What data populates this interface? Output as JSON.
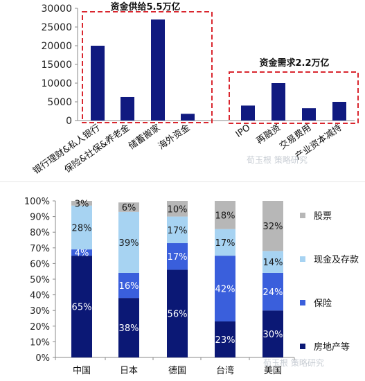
{
  "chart_data": [
    {
      "type": "bar",
      "ylim": [
        0,
        30000
      ],
      "yticks": [
        "0",
        "5000",
        "10000",
        "15000",
        "20000",
        "25000",
        "30000"
      ],
      "categories": [
        "银行理财&私人银行",
        "保险&社保&养老金",
        "储蓄搬家",
        "海外资金",
        "IPO",
        "再融资",
        "交易费用",
        "产业资本减持"
      ],
      "values": [
        20000,
        6300,
        27000,
        1800,
        4000,
        10000,
        3300,
        5000
      ],
      "annotations": [
        {
          "text": "资金供给5.5万亿",
          "covers": [
            "银行理财&私人银行",
            "保险&社保&养老金",
            "储蓄搬家",
            "海外资金"
          ]
        },
        {
          "text": "资金需求2.2万亿",
          "covers": [
            "IPO",
            "再融资",
            "交易费用",
            "产业资本减持"
          ]
        }
      ],
      "colors": {
        "bar": "#101a80",
        "box": "#d9262e"
      }
    },
    {
      "type": "bar",
      "stacked": true,
      "ylim": [
        0,
        100
      ],
      "yticks": [
        "0%",
        "10%",
        "20%",
        "30%",
        "40%",
        "50%",
        "60%",
        "70%",
        "80%",
        "90%",
        "100%"
      ],
      "categories": [
        "中国",
        "日本",
        "德国",
        "台湾",
        "美国"
      ],
      "series": [
        {
          "name": "房地产等",
          "values": [
            65,
            38,
            56,
            23,
            30
          ],
          "labels": [
            "65%",
            "38%",
            "56%",
            "23%",
            "30%"
          ],
          "color": "#0b1875"
        },
        {
          "name": "保险",
          "values": [
            4,
            16,
            17,
            42,
            24
          ],
          "labels": [
            "4%",
            "16%",
            "17%",
            "42%",
            "24%"
          ],
          "color": "#3a5fdc"
        },
        {
          "name": "现金及存款",
          "values": [
            28,
            39,
            17,
            17,
            14
          ],
          "labels": [
            "28%",
            "39%",
            "17%",
            "17%",
            "14%"
          ],
          "color": "#a7d3f2"
        },
        {
          "name": "股票",
          "values": [
            3,
            6,
            10,
            18,
            32
          ],
          "labels": [
            "3%",
            "6%",
            "10%",
            "18%",
            "32%"
          ],
          "color": "#b7b7b7"
        }
      ],
      "legend_position": "right"
    }
  ],
  "watermarks": [
    "荀玉根 策略研究",
    "荀玉根 策略研究"
  ]
}
